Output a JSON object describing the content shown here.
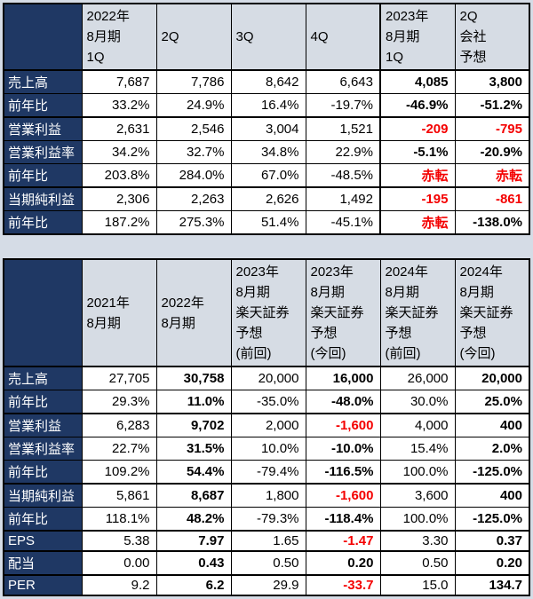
{
  "colors": {
    "page_bg": "#d5dce6",
    "header_bg": "#d6dce4",
    "label_bg": "#1f3864",
    "label_fg": "#ffffff",
    "negative": "#f40000"
  },
  "chart_data": [
    {
      "type": "table",
      "name": "quarterly-results",
      "bold_cols": [
        4,
        5
      ],
      "thick_col": 4,
      "headers": [
        {
          "lines": [
            "2022年",
            "8月期",
            "1Q"
          ],
          "bold": false
        },
        {
          "lines": [
            "2Q"
          ],
          "bold": false
        },
        {
          "lines": [
            "3Q"
          ],
          "bold": false
        },
        {
          "lines": [
            "4Q"
          ],
          "bold": false
        },
        {
          "lines": [
            "2023年",
            "8月期",
            "1Q"
          ],
          "bold": true
        },
        {
          "lines": [
            "2Q",
            "会社",
            "予想"
          ],
          "bold": true
        }
      ],
      "rows": [
        {
          "label": "売上高",
          "thick": false,
          "values": [
            "7,687",
            "7,786",
            "8,642",
            "6,643",
            "4,085",
            "3,800"
          ],
          "red": []
        },
        {
          "label": "前年比",
          "thick": false,
          "values": [
            "33.2%",
            "24.9%",
            "16.4%",
            "-19.7%",
            "-46.9%",
            "-51.2%"
          ],
          "red": []
        },
        {
          "label": "営業利益",
          "thick": true,
          "values": [
            "2,631",
            "2,546",
            "3,004",
            "1,521",
            "-209",
            "-795"
          ],
          "red": [
            4,
            5
          ]
        },
        {
          "label": "営業利益率",
          "thick": false,
          "values": [
            "34.2%",
            "32.7%",
            "34.8%",
            "22.9%",
            "-5.1%",
            "-20.9%"
          ],
          "red": []
        },
        {
          "label": "前年比",
          "thick": false,
          "values": [
            "203.8%",
            "284.0%",
            "67.0%",
            "-48.5%",
            "赤転",
            "赤転"
          ],
          "red": [
            4,
            5
          ]
        },
        {
          "label": "当期純利益",
          "thick": true,
          "values": [
            "2,306",
            "2,263",
            "2,626",
            "1,492",
            "-195",
            "-861"
          ],
          "red": [
            4,
            5
          ]
        },
        {
          "label": "前年比",
          "thick": false,
          "values": [
            "187.2%",
            "275.3%",
            "51.4%",
            "-45.1%",
            "赤転",
            "-138.0%"
          ],
          "red": [
            4
          ]
        }
      ]
    },
    {
      "type": "table",
      "name": "annual-and-forecast",
      "bold_cols": [
        1,
        3,
        5
      ],
      "thick_col": -1,
      "headers": [
        {
          "lines": [
            "2021年",
            "8月期"
          ],
          "bold": false
        },
        {
          "lines": [
            "2022年",
            "8月期"
          ],
          "bold": true
        },
        {
          "lines": [
            "2023年",
            "8月期",
            "楽天証券",
            "予想",
            "(前回)"
          ],
          "bold": false
        },
        {
          "lines": [
            "2023年",
            "8月期",
            "楽天証券",
            "予想",
            "(今回)"
          ],
          "bold": true
        },
        {
          "lines": [
            "2024年",
            "8月期",
            "楽天証券",
            "予想",
            "(前回)"
          ],
          "bold": false
        },
        {
          "lines": [
            "2024年",
            "8月期",
            "楽天証券",
            "予想",
            "(今回)"
          ],
          "bold": true
        }
      ],
      "rows": [
        {
          "label": "売上高",
          "thick": false,
          "values": [
            "27,705",
            "30,758",
            "20,000",
            "16,000",
            "26,000",
            "20,000"
          ],
          "red": []
        },
        {
          "label": "前年比",
          "thick": false,
          "values": [
            "29.3%",
            "11.0%",
            "-35.0%",
            "-48.0%",
            "30.0%",
            "25.0%"
          ],
          "red": []
        },
        {
          "label": "営業利益",
          "thick": true,
          "values": [
            "6,283",
            "9,702",
            "2,000",
            "-1,600",
            "4,000",
            "400"
          ],
          "red": [
            3
          ]
        },
        {
          "label": "営業利益率",
          "thick": false,
          "values": [
            "22.7%",
            "31.5%",
            "10.0%",
            "-10.0%",
            "15.4%",
            "2.0%"
          ],
          "red": []
        },
        {
          "label": "前年比",
          "thick": false,
          "values": [
            "109.2%",
            "54.4%",
            "-79.4%",
            "-116.5%",
            "100.0%",
            "-125.0%"
          ],
          "red": []
        },
        {
          "label": "当期純利益",
          "thick": true,
          "values": [
            "5,861",
            "8,687",
            "1,800",
            "-1,600",
            "3,600",
            "400"
          ],
          "red": [
            3
          ]
        },
        {
          "label": "前年比",
          "thick": false,
          "values": [
            "118.1%",
            "48.2%",
            "-79.3%",
            "-118.4%",
            "100.0%",
            "-125.0%"
          ],
          "red": []
        },
        {
          "label": "EPS",
          "thick": true,
          "values": [
            "5.38",
            "7.97",
            "1.65",
            "-1.47",
            "3.30",
            "0.37"
          ],
          "red": [
            3
          ]
        },
        {
          "label": "配当",
          "thick": true,
          "values": [
            "0.00",
            "0.43",
            "0.50",
            "0.20",
            "0.50",
            "0.20"
          ],
          "red": []
        },
        {
          "label": "PER",
          "thick": true,
          "values": [
            "9.2",
            "6.2",
            "29.9",
            "-33.7",
            "15.0",
            "134.7"
          ],
          "red": [
            3
          ]
        }
      ]
    }
  ]
}
